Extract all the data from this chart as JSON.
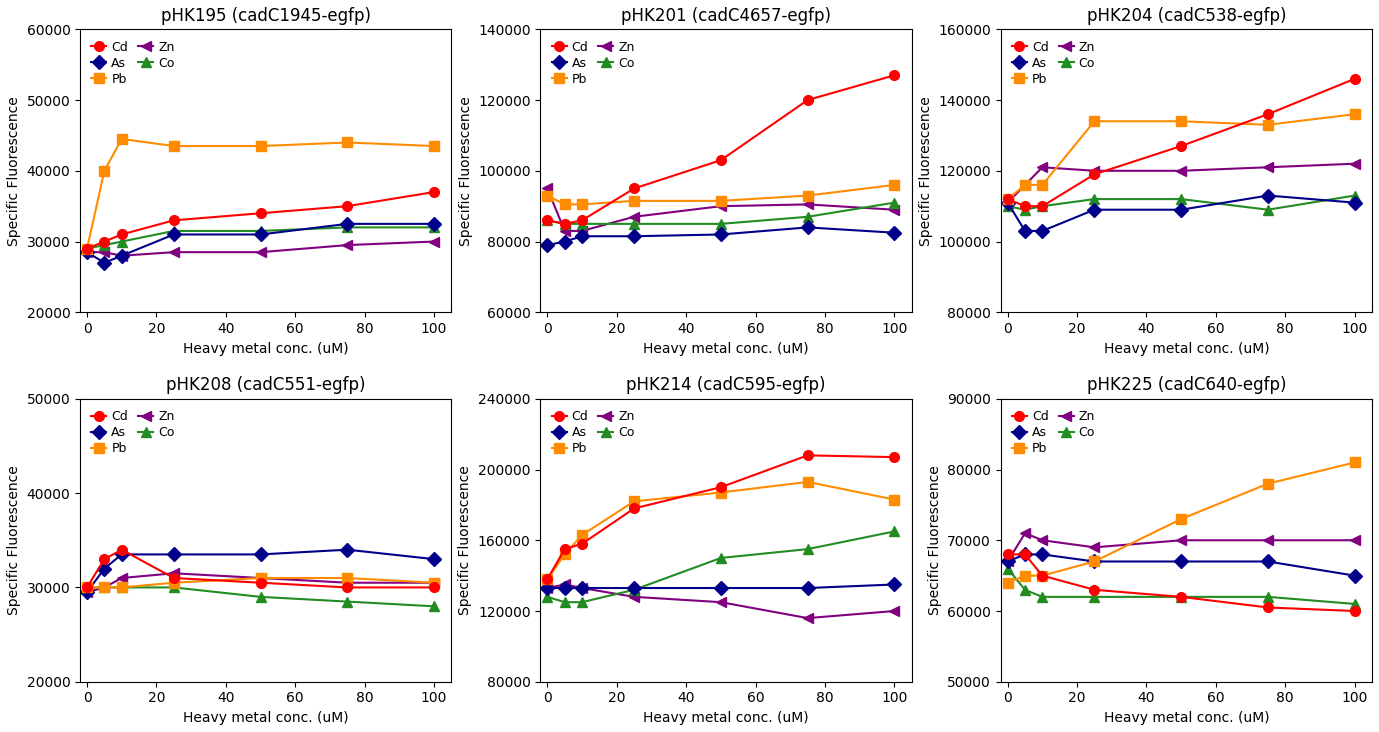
{
  "x": [
    0,
    5,
    10,
    25,
    50,
    75,
    100
  ],
  "subplots": [
    {
      "title": "pHK195 (cadC1945-egfp)",
      "ylim": [
        20000,
        60000
      ],
      "yticks": [
        20000,
        30000,
        40000,
        50000,
        60000
      ],
      "series": {
        "Cd": [
          29000,
          30000,
          31000,
          33000,
          34000,
          35000,
          37000
        ],
        "Pb": [
          29000,
          40000,
          44500,
          43500,
          43500,
          44000,
          43500
        ],
        "Co": [
          29000,
          29500,
          30000,
          31500,
          31500,
          32000,
          32000
        ],
        "As": [
          28500,
          27000,
          28000,
          31000,
          31000,
          32500,
          32500
        ],
        "Zn": [
          28500,
          28500,
          28000,
          28500,
          28500,
          29500,
          30000
        ]
      }
    },
    {
      "title": "pHK201 (cadC4657-egfp)",
      "ylim": [
        60000,
        140000
      ],
      "yticks": [
        60000,
        80000,
        100000,
        120000,
        140000
      ],
      "series": {
        "Cd": [
          86000,
          85000,
          86000,
          95000,
          103000,
          120000,
          127000
        ],
        "Pb": [
          93000,
          90500,
          90500,
          91500,
          91500,
          93000,
          96000
        ],
        "Co": [
          86000,
          85000,
          85000,
          85000,
          85000,
          87000,
          91000
        ],
        "As": [
          79000,
          80000,
          81500,
          81500,
          82000,
          84000,
          82500
        ],
        "Zn": [
          95000,
          83000,
          83000,
          87000,
          90000,
          90500,
          89000
        ]
      }
    },
    {
      "title": "pHK204 (cadC538-egfp)",
      "ylim": [
        80000,
        160000
      ],
      "yticks": [
        80000,
        100000,
        120000,
        140000,
        160000
      ],
      "series": {
        "Cd": [
          112000,
          110000,
          110000,
          119000,
          127000,
          136000,
          146000
        ],
        "Pb": [
          112000,
          116000,
          116000,
          134000,
          134000,
          133000,
          136000
        ],
        "Co": [
          110000,
          109000,
          110000,
          112000,
          112000,
          109000,
          113000
        ],
        "As": [
          111000,
          103000,
          103000,
          109000,
          109000,
          113000,
          111000
        ],
        "Zn": [
          111000,
          116000,
          121000,
          120000,
          120000,
          121000,
          122000
        ]
      }
    },
    {
      "title": "pHK208 (cadC551-egfp)",
      "ylim": [
        20000,
        50000
      ],
      "yticks": [
        20000,
        30000,
        40000,
        50000
      ],
      "series": {
        "Cd": [
          30000,
          33000,
          34000,
          31000,
          30500,
          30000,
          30000
        ],
        "Pb": [
          30000,
          30000,
          30000,
          30500,
          31000,
          31000,
          30500
        ],
        "Co": [
          30000,
          30000,
          30000,
          30000,
          29000,
          28500,
          28000
        ],
        "As": [
          29500,
          32000,
          33500,
          33500,
          33500,
          34000,
          33000
        ],
        "Zn": [
          29500,
          30000,
          31000,
          31500,
          31000,
          30500,
          30500
        ]
      }
    },
    {
      "title": "pHK214 (cadC595-egfp)",
      "ylim": [
        80000,
        240000
      ],
      "yticks": [
        80000,
        120000,
        160000,
        200000,
        240000
      ],
      "series": {
        "Cd": [
          138000,
          155000,
          158000,
          178000,
          190000,
          208000,
          207000
        ],
        "Pb": [
          138000,
          152000,
          163000,
          182000,
          187000,
          193000,
          183000
        ],
        "Co": [
          128000,
          125000,
          125000,
          132000,
          150000,
          155000,
          165000
        ],
        "As": [
          133000,
          133000,
          133000,
          133000,
          133000,
          133000,
          135000
        ],
        "Zn": [
          133000,
          135000,
          133000,
          128000,
          125000,
          116000,
          120000
        ]
      }
    },
    {
      "title": "pHK225 (cadC640-egfp)",
      "ylim": [
        50000,
        90000
      ],
      "yticks": [
        50000,
        60000,
        70000,
        80000,
        90000
      ],
      "series": {
        "Cd": [
          68000,
          68000,
          65000,
          63000,
          62000,
          60500,
          60000
        ],
        "Pb": [
          64000,
          65000,
          65000,
          67000,
          73000,
          78000,
          81000
        ],
        "Co": [
          66000,
          63000,
          62000,
          62000,
          62000,
          62000,
          61000
        ],
        "As": [
          67000,
          68000,
          68000,
          67000,
          67000,
          67000,
          65000
        ],
        "Zn": [
          67000,
          71000,
          70000,
          69000,
          70000,
          70000,
          70000
        ]
      }
    }
  ],
  "colors": {
    "Cd": "#FF0000",
    "Pb": "#FF8C00",
    "Co": "#228B22",
    "As": "#00008B",
    "Zn": "#800080"
  },
  "markers": {
    "Cd": "o",
    "Pb": "s",
    "Co": "^",
    "As": "D",
    "Zn": "<"
  },
  "legend_order": [
    "Cd",
    "As",
    "Pb",
    "Zn",
    "Co"
  ],
  "xlabel": "Heavy metal conc. (uM)",
  "ylabel": "Specific Fluorescence",
  "background_color": "#FFFFFF"
}
